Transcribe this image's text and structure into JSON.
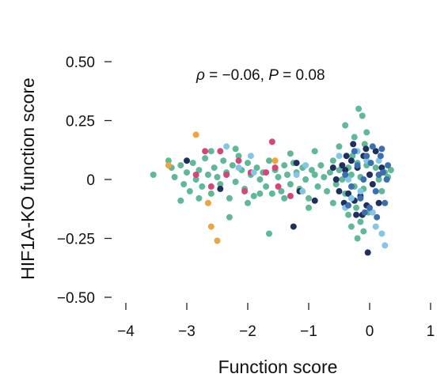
{
  "chart_data": {
    "type": "scatter",
    "xlabel": "Function score",
    "ylabel": "HIF1A-KO function score",
    "xlim": [
      -4.4,
      1.1
    ],
    "ylim": [
      -0.54,
      0.54
    ],
    "xticks": [
      -4,
      -3,
      -2,
      -1,
      0,
      1
    ],
    "xtick_labels": [
      "−4",
      "−3",
      "−2",
      "−1",
      "0",
      "1"
    ],
    "yticks": [
      0.5,
      0.25,
      0,
      -0.25,
      -0.5
    ],
    "ytick_labels": [
      "0.50",
      "0.25",
      "0",
      "−0.25",
      "−0.50"
    ],
    "annotation": {
      "rho_symbol": "ρ",
      "rho_text": " = −0.06, ",
      "p_symbol": "P",
      "p_text": " = 0.08"
    },
    "grid": false,
    "legend": "none",
    "colors": {
      "green": "#5fb896",
      "magenta": "#d6457a",
      "orange": "#eda53c",
      "navy": "#1f2f5f",
      "lightblue": "#84c6e6",
      "blue": "#3c6fb2"
    },
    "series": [
      {
        "color_key": "green",
        "points": [
          [
            -3.55,
            0.02
          ],
          [
            -3.3,
            0.08
          ],
          [
            -3.25,
            0.05
          ],
          [
            -3.2,
            0.01
          ],
          [
            -3.1,
            0.06
          ],
          [
            -3.05,
            -0.02
          ],
          [
            -3.0,
            0.03
          ],
          [
            -2.95,
            -0.05
          ],
          [
            -2.9,
            0.07
          ],
          [
            -2.85,
            0.0
          ],
          [
            -2.8,
            0.04
          ],
          [
            -2.75,
            -0.03
          ],
          [
            -2.7,
            0.09
          ],
          [
            -2.65,
            0.02
          ],
          [
            -2.6,
            -0.06
          ],
          [
            -2.55,
            0.05
          ],
          [
            -2.5,
            0.01
          ],
          [
            -2.45,
            -0.02
          ],
          [
            -2.4,
            0.08
          ],
          [
            -2.35,
            0.03
          ],
          [
            -2.3,
            -0.08
          ],
          [
            -2.25,
            0.06
          ],
          [
            -2.2,
            -0.01
          ],
          [
            -2.15,
            0.1
          ],
          [
            -2.1,
            0.04
          ],
          [
            -2.05,
            -0.04
          ],
          [
            -2.0,
            0.07
          ],
          [
            -1.95,
            0.02
          ],
          [
            -1.9,
            -0.07
          ],
          [
            -1.85,
            0.05
          ],
          [
            -1.8,
            0.0
          ],
          [
            -1.75,
            0.03
          ],
          [
            -1.7,
            -0.03
          ],
          [
            -1.65,
            0.08
          ],
          [
            -1.6,
            -0.06
          ],
          [
            -1.55,
            0.04
          ],
          [
            -1.5,
            0.01
          ],
          [
            -1.45,
            -0.05
          ],
          [
            -1.4,
            0.06
          ],
          [
            -1.35,
            0.02
          ],
          [
            -1.3,
            -0.02
          ],
          [
            -1.25,
            0.07
          ],
          [
            -1.2,
            0.03
          ],
          [
            -1.15,
            -0.04
          ],
          [
            -1.1,
            0.05
          ],
          [
            -1.05,
            0.0
          ],
          [
            -1.0,
            -0.08
          ],
          [
            -0.95,
            0.04
          ],
          [
            -0.9,
            0.02
          ],
          [
            -0.85,
            -0.03
          ],
          [
            -0.8,
            0.06
          ],
          [
            -0.75,
            0.01
          ],
          [
            -0.7,
            -0.05
          ],
          [
            -0.65,
            0.03
          ],
          [
            -0.6,
            0.08
          ],
          [
            -0.55,
            -0.02
          ],
          [
            -0.5,
            0.04
          ],
          [
            -0.45,
            0.0
          ],
          [
            -0.4,
            -0.06
          ],
          [
            -0.35,
            0.05
          ],
          [
            -0.3,
            0.02
          ],
          [
            -0.25,
            -0.03
          ],
          [
            -0.2,
            0.07
          ],
          [
            -0.15,
            0.01
          ],
          [
            -0.1,
            -0.04
          ],
          [
            -0.05,
            0.06
          ],
          [
            0.0,
            0.02
          ],
          [
            0.05,
            -0.02
          ],
          [
            0.1,
            0.05
          ],
          [
            0.15,
            0.0
          ],
          [
            0.2,
            -0.05
          ],
          [
            0.25,
            0.03
          ],
          [
            0.3,
            0.01
          ],
          [
            0.35,
            0.04
          ],
          [
            -0.18,
            0.3
          ],
          [
            -0.12,
            0.27
          ],
          [
            -0.4,
            0.23
          ],
          [
            -0.05,
            0.2
          ],
          [
            -0.25,
            0.18
          ],
          [
            -0.15,
            -0.18
          ],
          [
            -0.3,
            -0.2
          ],
          [
            -0.1,
            -0.22
          ],
          [
            -0.2,
            -0.25
          ],
          [
            -1.65,
            -0.23
          ],
          [
            -2.3,
            -0.16
          ],
          [
            -2.8,
            -0.08
          ],
          [
            -3.1,
            -0.09
          ],
          [
            -1.0,
            -0.12
          ],
          [
            -1.4,
            -0.08
          ],
          [
            -0.6,
            -0.1
          ],
          [
            -0.35,
            -0.15
          ],
          [
            -2.0,
            -0.1
          ],
          [
            -1.8,
            -0.06
          ],
          [
            -0.9,
            0.12
          ],
          [
            -2.6,
            0.12
          ],
          [
            -2.2,
            0.13
          ],
          [
            -1.3,
            0.11
          ],
          [
            -0.5,
            0.14
          ],
          [
            -0.08,
            0.15
          ],
          [
            -0.28,
            0.1
          ],
          [
            -0.22,
            -0.12
          ],
          [
            -0.02,
            -0.14
          ]
        ]
      },
      {
        "color_key": "magenta",
        "points": [
          [
            -2.7,
            0.12
          ],
          [
            -2.45,
            0.12
          ],
          [
            -2.6,
            -0.03
          ],
          [
            -2.15,
            0.08
          ],
          [
            -2.05,
            -0.05
          ],
          [
            -1.95,
            0.03
          ],
          [
            -1.7,
            0.03
          ],
          [
            -1.6,
            0.16
          ],
          [
            -1.55,
            0.05
          ],
          [
            -1.5,
            -0.03
          ],
          [
            -1.3,
            -0.07
          ],
          [
            -2.35,
            0.02
          ],
          [
            -2.85,
            0.02
          ]
        ]
      },
      {
        "color_key": "orange",
        "points": [
          [
            -3.3,
            0.06
          ],
          [
            -2.85,
            0.19
          ],
          [
            -2.65,
            -0.1
          ],
          [
            -2.6,
            -0.2
          ],
          [
            -2.5,
            -0.26
          ],
          [
            -1.55,
            0.08
          ]
        ]
      },
      {
        "color_key": "navy",
        "points": [
          [
            -3.0,
            0.08
          ],
          [
            -2.45,
            -0.04
          ],
          [
            -1.25,
            -0.2
          ],
          [
            -1.2,
            0.07
          ],
          [
            -1.15,
            -0.05
          ],
          [
            -0.9,
            -0.09
          ],
          [
            -0.55,
            0.0
          ],
          [
            -0.5,
            -0.05
          ],
          [
            -0.45,
            0.06
          ],
          [
            -0.4,
            0.04
          ],
          [
            -0.35,
            -0.06
          ],
          [
            -0.3,
            0.08
          ],
          [
            -0.25,
            -0.09
          ],
          [
            -0.2,
            0.05
          ],
          [
            -0.15,
            -0.07
          ],
          [
            -0.1,
            0.1
          ],
          [
            -0.05,
            -0.11
          ],
          [
            0.0,
            0.02
          ],
          [
            0.05,
            -0.02
          ],
          [
            0.1,
            0.12
          ],
          [
            -0.03,
            -0.31
          ],
          [
            -0.12,
            -0.15
          ],
          [
            -0.22,
            -0.15
          ],
          [
            0.15,
            -0.1
          ],
          [
            0.2,
            0.05
          ],
          [
            -0.38,
            0.1
          ],
          [
            -0.42,
            -0.1
          ],
          [
            -0.6,
            0.05
          ],
          [
            -0.27,
            0.15
          ],
          [
            -0.06,
            0.13
          ]
        ]
      },
      {
        "color_key": "lightblue",
        "points": [
          [
            -2.35,
            0.14
          ],
          [
            -2.15,
            0.05
          ],
          [
            -1.95,
            0.1
          ],
          [
            -1.2,
            0.02
          ],
          [
            -1.05,
            0.06
          ],
          [
            -0.4,
            -0.12
          ],
          [
            -0.35,
            0.0
          ],
          [
            0.2,
            -0.23
          ],
          [
            0.25,
            -0.28
          ],
          [
            -0.15,
            -0.05
          ],
          [
            0.1,
            -0.2
          ],
          [
            -0.5,
            0.1
          ],
          [
            -0.3,
            -0.08
          ],
          [
            -0.05,
            0.08
          ],
          [
            0.05,
            -0.14
          ],
          [
            -1.1,
            -0.05
          ],
          [
            -1.9,
            0.03
          ],
          [
            -0.2,
            0.12
          ],
          [
            0.15,
            0.08
          ]
        ]
      },
      {
        "color_key": "blue",
        "points": [
          [
            -0.4,
            0.02
          ],
          [
            -0.3,
            -0.03
          ],
          [
            -0.2,
            0.06
          ],
          [
            -0.15,
            -0.08
          ],
          [
            -0.1,
            0.0
          ],
          [
            -0.05,
            0.1
          ],
          [
            0.0,
            -0.12
          ],
          [
            0.05,
            0.14
          ],
          [
            0.1,
            -0.05
          ],
          [
            0.15,
            0.02
          ],
          [
            0.2,
            0.13
          ],
          [
            0.25,
            -0.1
          ],
          [
            0.3,
            0.06
          ],
          [
            0.22,
            0.03
          ],
          [
            -0.25,
            0.12
          ],
          [
            0.12,
            -0.16
          ],
          [
            0.02,
            0.07
          ],
          [
            -0.08,
            -0.14
          ],
          [
            0.28,
            0.0
          ],
          [
            0.18,
            0.1
          ],
          [
            -0.35,
            -0.11
          ]
        ]
      }
    ]
  }
}
